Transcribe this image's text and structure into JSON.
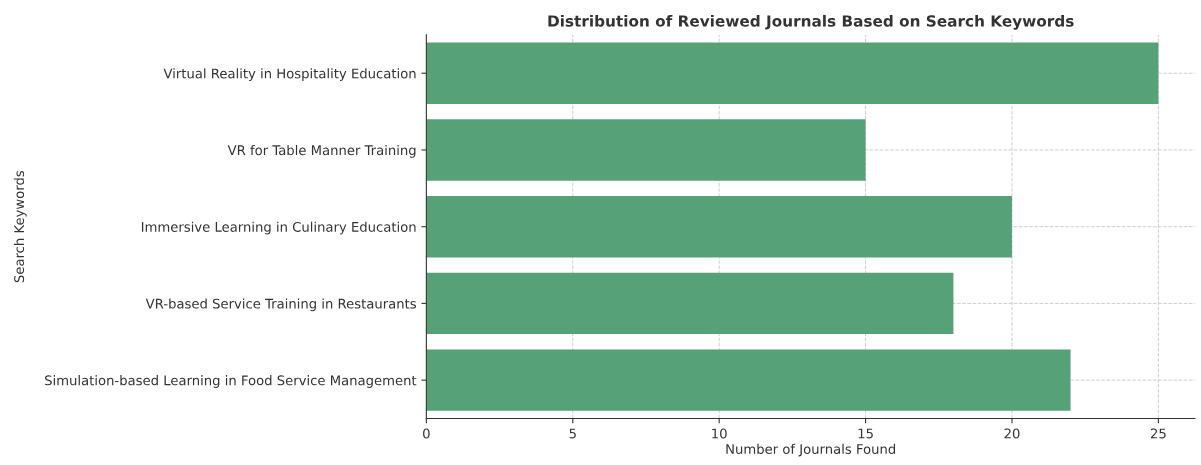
{
  "chart_data": {
    "type": "bar",
    "orientation": "horizontal",
    "title": "Distribution of Reviewed Journals Based on Search Keywords",
    "xlabel": "Number of Journals Found",
    "ylabel": "Search Keywords",
    "categories": [
      "Virtual Reality in Hospitality Education",
      "VR for Table Manner Training",
      "Immersive Learning in Culinary Education",
      "VR-based Service Training in Restaurants",
      "Simulation-based Learning in Food Service Management"
    ],
    "values": [
      25,
      15,
      20,
      18,
      22
    ],
    "color": "#57a178",
    "xlim": [
      0,
      26.25
    ],
    "xticks": [
      0,
      5,
      10,
      15,
      20,
      25
    ],
    "grid": true
  }
}
